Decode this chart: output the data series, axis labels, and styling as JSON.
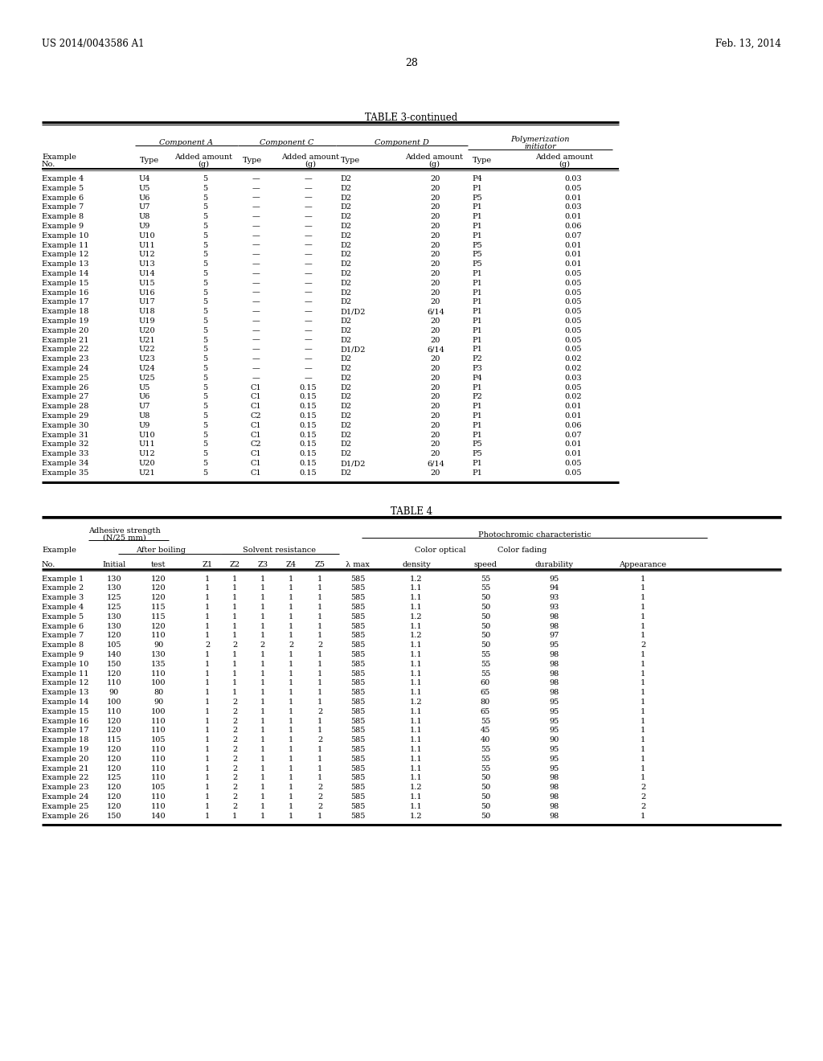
{
  "header_left": "US 2014/0043586 A1",
  "header_right": "Feb. 13, 2014",
  "page_number": "28",
  "table3_title": "TABLE 3-continued",
  "table3_rows": [
    [
      "Example 4",
      "U4",
      "5",
      "—",
      "—",
      "D2",
      "20",
      "P4",
      "0.03"
    ],
    [
      "Example 5",
      "U5",
      "5",
      "—",
      "—",
      "D2",
      "20",
      "P1",
      "0.05"
    ],
    [
      "Example 6",
      "U6",
      "5",
      "—",
      "—",
      "D2",
      "20",
      "P5",
      "0.01"
    ],
    [
      "Example 7",
      "U7",
      "5",
      "—",
      "—",
      "D2",
      "20",
      "P1",
      "0.03"
    ],
    [
      "Example 8",
      "U8",
      "5",
      "—",
      "—",
      "D2",
      "20",
      "P1",
      "0.01"
    ],
    [
      "Example 9",
      "U9",
      "5",
      "—",
      "—",
      "D2",
      "20",
      "P1",
      "0.06"
    ],
    [
      "Example 10",
      "U10",
      "5",
      "—",
      "—",
      "D2",
      "20",
      "P1",
      "0.07"
    ],
    [
      "Example 11",
      "U11",
      "5",
      "—",
      "—",
      "D2",
      "20",
      "P5",
      "0.01"
    ],
    [
      "Example 12",
      "U12",
      "5",
      "—",
      "—",
      "D2",
      "20",
      "P5",
      "0.01"
    ],
    [
      "Example 13",
      "U13",
      "5",
      "—",
      "—",
      "D2",
      "20",
      "P5",
      "0.01"
    ],
    [
      "Example 14",
      "U14",
      "5",
      "—",
      "—",
      "D2",
      "20",
      "P1",
      "0.05"
    ],
    [
      "Example 15",
      "U15",
      "5",
      "—",
      "—",
      "D2",
      "20",
      "P1",
      "0.05"
    ],
    [
      "Example 16",
      "U16",
      "5",
      "—",
      "—",
      "D2",
      "20",
      "P1",
      "0.05"
    ],
    [
      "Example 17",
      "U17",
      "5",
      "—",
      "—",
      "D2",
      "20",
      "P1",
      "0.05"
    ],
    [
      "Example 18",
      "U18",
      "5",
      "—",
      "—",
      "D1/D2",
      "6/14",
      "P1",
      "0.05"
    ],
    [
      "Example 19",
      "U19",
      "5",
      "—",
      "—",
      "D2",
      "20",
      "P1",
      "0.05"
    ],
    [
      "Example 20",
      "U20",
      "5",
      "—",
      "—",
      "D2",
      "20",
      "P1",
      "0.05"
    ],
    [
      "Example 21",
      "U21",
      "5",
      "—",
      "—",
      "D2",
      "20",
      "P1",
      "0.05"
    ],
    [
      "Example 22",
      "U22",
      "5",
      "—",
      "—",
      "D1/D2",
      "6/14",
      "P1",
      "0.05"
    ],
    [
      "Example 23",
      "U23",
      "5",
      "—",
      "—",
      "D2",
      "20",
      "P2",
      "0.02"
    ],
    [
      "Example 24",
      "U24",
      "5",
      "—",
      "—",
      "D2",
      "20",
      "P3",
      "0.02"
    ],
    [
      "Example 25",
      "U25",
      "5",
      "—",
      "—",
      "D2",
      "20",
      "P4",
      "0.03"
    ],
    [
      "Example 26",
      "U5",
      "5",
      "C1",
      "0.15",
      "D2",
      "20",
      "P1",
      "0.05"
    ],
    [
      "Example 27",
      "U6",
      "5",
      "C1",
      "0.15",
      "D2",
      "20",
      "P2",
      "0.02"
    ],
    [
      "Example 28",
      "U7",
      "5",
      "C1",
      "0.15",
      "D2",
      "20",
      "P1",
      "0.01"
    ],
    [
      "Example 29",
      "U8",
      "5",
      "C2",
      "0.15",
      "D2",
      "20",
      "P1",
      "0.01"
    ],
    [
      "Example 30",
      "U9",
      "5",
      "C1",
      "0.15",
      "D2",
      "20",
      "P1",
      "0.06"
    ],
    [
      "Example 31",
      "U10",
      "5",
      "C1",
      "0.15",
      "D2",
      "20",
      "P1",
      "0.07"
    ],
    [
      "Example 32",
      "U11",
      "5",
      "C2",
      "0.15",
      "D2",
      "20",
      "P5",
      "0.01"
    ],
    [
      "Example 33",
      "U12",
      "5",
      "C1",
      "0.15",
      "D2",
      "20",
      "P5",
      "0.01"
    ],
    [
      "Example 34",
      "U20",
      "5",
      "C1",
      "0.15",
      "D1/D2",
      "6/14",
      "P1",
      "0.05"
    ],
    [
      "Example 35",
      "U21",
      "5",
      "C1",
      "0.15",
      "D2",
      "20",
      "P1",
      "0.05"
    ]
  ],
  "table4_title": "TABLE 4",
  "table4_rows": [
    [
      "Example 1",
      "130",
      "120",
      "1",
      "1",
      "1",
      "1",
      "1",
      "585",
      "1.2",
      "55",
      "95",
      "1"
    ],
    [
      "Example 2",
      "130",
      "120",
      "1",
      "1",
      "1",
      "1",
      "1",
      "585",
      "1.1",
      "55",
      "94",
      "1"
    ],
    [
      "Example 3",
      "125",
      "120",
      "1",
      "1",
      "1",
      "1",
      "1",
      "585",
      "1.1",
      "50",
      "93",
      "1"
    ],
    [
      "Example 4",
      "125",
      "115",
      "1",
      "1",
      "1",
      "1",
      "1",
      "585",
      "1.1",
      "50",
      "93",
      "1"
    ],
    [
      "Example 5",
      "130",
      "115",
      "1",
      "1",
      "1",
      "1",
      "1",
      "585",
      "1.2",
      "50",
      "98",
      "1"
    ],
    [
      "Example 6",
      "130",
      "120",
      "1",
      "1",
      "1",
      "1",
      "1",
      "585",
      "1.1",
      "50",
      "98",
      "1"
    ],
    [
      "Example 7",
      "120",
      "110",
      "1",
      "1",
      "1",
      "1",
      "1",
      "585",
      "1.2",
      "50",
      "97",
      "1"
    ],
    [
      "Example 8",
      "105",
      "90",
      "2",
      "2",
      "2",
      "2",
      "2",
      "585",
      "1.1",
      "50",
      "95",
      "2"
    ],
    [
      "Example 9",
      "140",
      "130",
      "1",
      "1",
      "1",
      "1",
      "1",
      "585",
      "1.1",
      "55",
      "98",
      "1"
    ],
    [
      "Example 10",
      "150",
      "135",
      "1",
      "1",
      "1",
      "1",
      "1",
      "585",
      "1.1",
      "55",
      "98",
      "1"
    ],
    [
      "Example 11",
      "120",
      "110",
      "1",
      "1",
      "1",
      "1",
      "1",
      "585",
      "1.1",
      "55",
      "98",
      "1"
    ],
    [
      "Example 12",
      "110",
      "100",
      "1",
      "1",
      "1",
      "1",
      "1",
      "585",
      "1.1",
      "60",
      "98",
      "1"
    ],
    [
      "Example 13",
      "90",
      "80",
      "1",
      "1",
      "1",
      "1",
      "1",
      "585",
      "1.1",
      "65",
      "98",
      "1"
    ],
    [
      "Example 14",
      "100",
      "90",
      "1",
      "2",
      "1",
      "1",
      "1",
      "585",
      "1.2",
      "80",
      "95",
      "1"
    ],
    [
      "Example 15",
      "110",
      "100",
      "1",
      "2",
      "1",
      "1",
      "2",
      "585",
      "1.1",
      "65",
      "95",
      "1"
    ],
    [
      "Example 16",
      "120",
      "110",
      "1",
      "2",
      "1",
      "1",
      "1",
      "585",
      "1.1",
      "55",
      "95",
      "1"
    ],
    [
      "Example 17",
      "120",
      "110",
      "1",
      "2",
      "1",
      "1",
      "1",
      "585",
      "1.1",
      "45",
      "95",
      "1"
    ],
    [
      "Example 18",
      "115",
      "105",
      "1",
      "2",
      "1",
      "1",
      "2",
      "585",
      "1.1",
      "40",
      "90",
      "1"
    ],
    [
      "Example 19",
      "120",
      "110",
      "1",
      "2",
      "1",
      "1",
      "1",
      "585",
      "1.1",
      "55",
      "95",
      "1"
    ],
    [
      "Example 20",
      "120",
      "110",
      "1",
      "2",
      "1",
      "1",
      "1",
      "585",
      "1.1",
      "55",
      "95",
      "1"
    ],
    [
      "Example 21",
      "120",
      "110",
      "1",
      "2",
      "1",
      "1",
      "1",
      "585",
      "1.1",
      "55",
      "95",
      "1"
    ],
    [
      "Example 22",
      "125",
      "110",
      "1",
      "2",
      "1",
      "1",
      "1",
      "585",
      "1.1",
      "50",
      "98",
      "1"
    ],
    [
      "Example 23",
      "120",
      "105",
      "1",
      "2",
      "1",
      "1",
      "2",
      "585",
      "1.2",
      "50",
      "98",
      "2"
    ],
    [
      "Example 24",
      "120",
      "110",
      "1",
      "2",
      "1",
      "1",
      "2",
      "585",
      "1.1",
      "50",
      "98",
      "2"
    ],
    [
      "Example 25",
      "120",
      "110",
      "1",
      "2",
      "1",
      "1",
      "2",
      "585",
      "1.1",
      "50",
      "98",
      "2"
    ],
    [
      "Example 26",
      "150",
      "140",
      "1",
      "1",
      "1",
      "1",
      "1",
      "585",
      "1.2",
      "50",
      "98",
      "1"
    ]
  ],
  "bg_color": "#ffffff",
  "text_color": "#000000",
  "fs": 7.0,
  "fs_title": 8.5,
  "fs_header": 8.5
}
